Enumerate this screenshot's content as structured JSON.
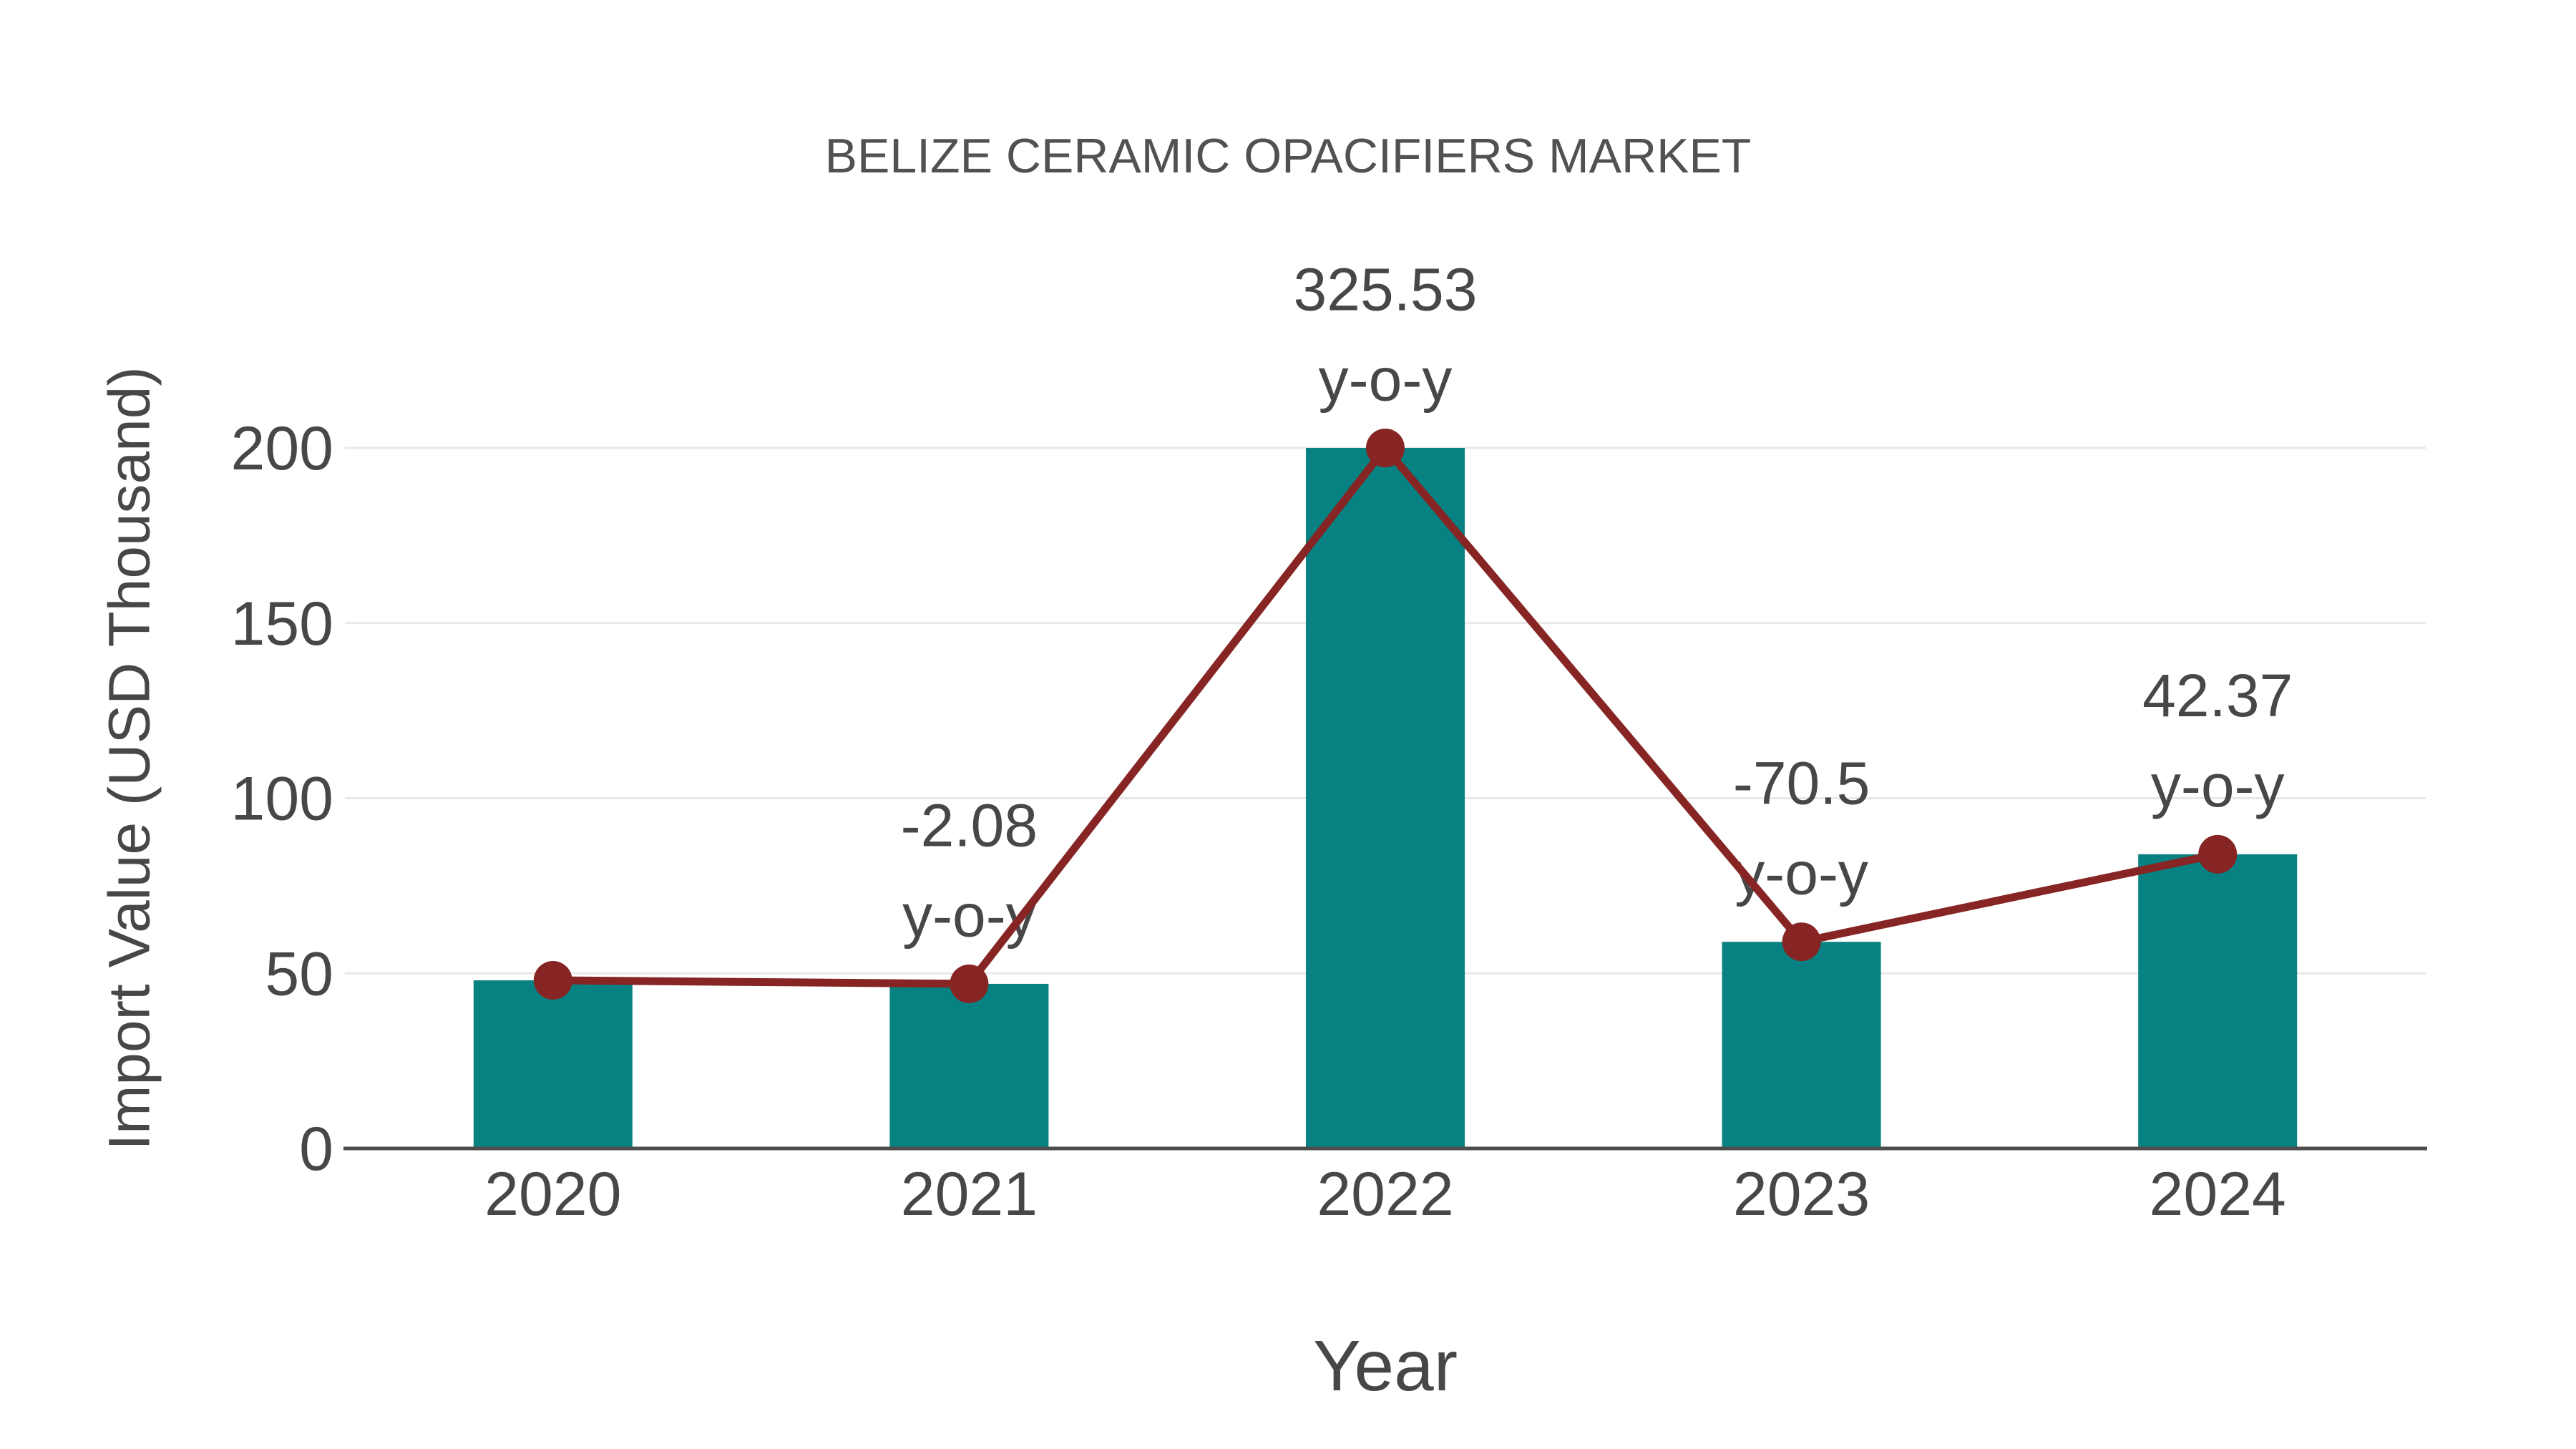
{
  "page": {
    "background": "#ffffff"
  },
  "chart_data": {
    "type": "bar+line",
    "title": "BELIZE CERAMIC OPACIFIERS MARKET",
    "xlabel": "Year",
    "ylabel": "Import Value (USD Thousand)",
    "categories": [
      "2020",
      "2021",
      "2022",
      "2023",
      "2024"
    ],
    "series": [
      {
        "name": "Import Value (USD Thousand) bars",
        "type": "bar",
        "values": [
          48,
          47,
          200,
          59,
          84
        ]
      },
      {
        "name": "Import Value trend line",
        "type": "line",
        "values": [
          48,
          47,
          200,
          59,
          84
        ]
      }
    ],
    "point_annotations": [
      {
        "category": "2020",
        "value_label": "",
        "suffix_label": ""
      },
      {
        "category": "2021",
        "value_label": "-2.08",
        "suffix_label": "y-o-y"
      },
      {
        "category": "2022",
        "value_label": "325.53",
        "suffix_label": "y-o-y"
      },
      {
        "category": "2023",
        "value_label": "-70.5",
        "suffix_label": "y-o-y"
      },
      {
        "category": "2024",
        "value_label": "42.37",
        "suffix_label": "y-o-y"
      }
    ],
    "ylim": [
      0,
      200
    ],
    "yticks": [
      0,
      50,
      100,
      150,
      200
    ],
    "grid": true,
    "legend_visible": false,
    "colors": {
      "bar": "#078181",
      "line": "#862524",
      "marker": "#862524",
      "text": "#474747",
      "title_text": "#515151",
      "gridline": "#e9e9e9",
      "axis_line": "#4d4d4d",
      "background": "#ffffff"
    }
  }
}
